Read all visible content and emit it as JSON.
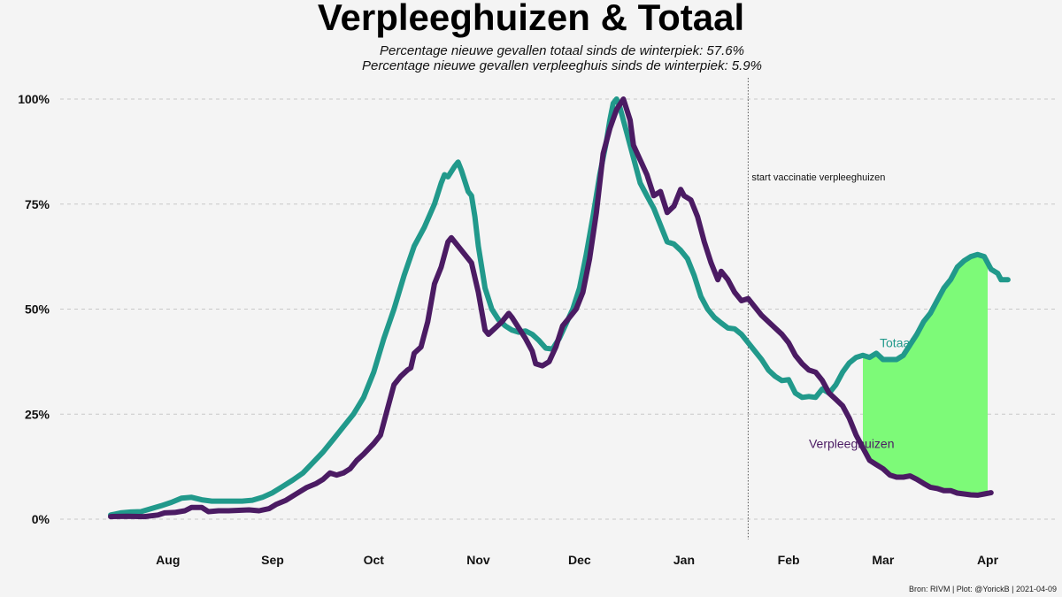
{
  "title": "Verpleeghuizen & Totaal",
  "subtitle1": "Percentage nieuwe gevallen totaal sinds de winterpiek: 57.6%",
  "subtitle2": "Percentage nieuwe gevallen verpleeghuis sinds de winterpiek: 5.9%",
  "caption": "Bron: RIVM | Plot: @YorickB  |  2021-04-09",
  "colors": {
    "totaal": "#21998b",
    "verpleeghuizen": "#4b1b63",
    "fill": "#7dfa78",
    "grid": "#c8c8c8",
    "vline": "#555555"
  },
  "chart_data": {
    "type": "line",
    "x_unit": "days since 2020-07-15",
    "xlim": [
      0,
      268
    ],
    "ylim": [
      0,
      100
    ],
    "y_ticks": [
      {
        "value": 0,
        "label": "0%"
      },
      {
        "value": 25,
        "label": "25%"
      },
      {
        "value": 50,
        "label": "50%"
      },
      {
        "value": 75,
        "label": "75%"
      },
      {
        "value": 100,
        "label": "100%"
      }
    ],
    "x_ticks": [
      {
        "value": 17,
        "label": "Aug"
      },
      {
        "value": 48,
        "label": "Sep"
      },
      {
        "value": 78,
        "label": "Oct"
      },
      {
        "value": 109,
        "label": "Nov"
      },
      {
        "value": 139,
        "label": "Dec"
      },
      {
        "value": 170,
        "label": "Jan"
      },
      {
        "value": 201,
        "label": "Feb"
      },
      {
        "value": 229,
        "label": "Mar"
      },
      {
        "value": 260,
        "label": "Apr"
      }
    ],
    "vertical_line": {
      "x": 189,
      "label": "start vaccinatie verpleeghuizen"
    },
    "fill_between": {
      "from_x": 223,
      "to_x": 260
    },
    "series": [
      {
        "name": "Totaal",
        "label_text": "Totaal",
        "label_pos": {
          "x": 228,
          "y": 42
        },
        "points": [
          [
            0,
            1
          ],
          [
            3,
            1.5
          ],
          [
            6,
            1.7
          ],
          [
            9,
            1.8
          ],
          [
            12,
            2.5
          ],
          [
            15,
            3.2
          ],
          [
            18,
            4
          ],
          [
            21,
            5
          ],
          [
            24,
            5.2
          ],
          [
            27,
            4.6
          ],
          [
            30,
            4.3
          ],
          [
            33,
            4.3
          ],
          [
            36,
            4.3
          ],
          [
            39,
            4.3
          ],
          [
            42,
            4.5
          ],
          [
            45,
            5.2
          ],
          [
            48,
            6.3
          ],
          [
            51,
            7.8
          ],
          [
            54,
            9.3
          ],
          [
            57,
            11
          ],
          [
            60,
            13.5
          ],
          [
            63,
            16
          ],
          [
            66,
            19
          ],
          [
            69,
            22
          ],
          [
            72,
            25
          ],
          [
            75,
            29
          ],
          [
            78,
            35
          ],
          [
            81,
            43
          ],
          [
            84,
            50
          ],
          [
            87,
            58
          ],
          [
            90,
            65
          ],
          [
            93,
            69.5
          ],
          [
            96,
            75
          ],
          [
            98,
            80
          ],
          [
            99,
            82
          ],
          [
            100,
            81.5
          ],
          [
            102,
            84
          ],
          [
            103,
            85
          ],
          [
            104,
            83
          ],
          [
            106,
            78
          ],
          [
            107,
            77
          ],
          [
            108,
            72
          ],
          [
            109,
            65
          ],
          [
            111,
            55
          ],
          [
            113,
            50
          ],
          [
            115,
            47.5
          ],
          [
            117,
            46
          ],
          [
            119,
            45
          ],
          [
            121,
            44.5
          ],
          [
            123,
            44.8
          ],
          [
            125,
            44
          ],
          [
            127,
            42.5
          ],
          [
            129,
            40.7
          ],
          [
            131,
            40.5
          ],
          [
            133,
            43
          ],
          [
            135,
            46.5
          ],
          [
            137,
            50
          ],
          [
            139,
            55
          ],
          [
            141,
            63
          ],
          [
            143,
            72
          ],
          [
            145,
            82
          ],
          [
            147,
            90
          ],
          [
            148,
            95
          ],
          [
            149,
            99
          ],
          [
            150,
            100
          ],
          [
            151,
            98
          ],
          [
            153,
            92
          ],
          [
            155,
            86
          ],
          [
            157,
            80
          ],
          [
            159,
            77
          ],
          [
            161,
            74
          ],
          [
            163,
            70
          ],
          [
            165,
            66
          ],
          [
            167,
            65.5
          ],
          [
            169,
            64
          ],
          [
            171,
            62
          ],
          [
            173,
            58
          ],
          [
            175,
            53
          ],
          [
            177,
            50
          ],
          [
            179,
            48
          ],
          [
            181,
            46.7
          ],
          [
            183,
            45.5
          ],
          [
            185,
            45.3
          ],
          [
            187,
            44
          ],
          [
            189,
            42
          ],
          [
            191,
            40
          ],
          [
            193,
            38
          ],
          [
            195,
            35.5
          ],
          [
            197,
            34
          ],
          [
            199,
            33
          ],
          [
            201,
            33.2
          ],
          [
            203,
            30
          ],
          [
            205,
            29
          ],
          [
            207,
            29.2
          ],
          [
            209,
            29
          ],
          [
            211,
            31
          ],
          [
            213,
            30
          ],
          [
            215,
            32
          ],
          [
            217,
            35
          ],
          [
            219,
            37.2
          ],
          [
            221,
            38.5
          ],
          [
            223,
            39
          ],
          [
            225,
            38.5
          ],
          [
            227,
            39.5
          ],
          [
            229,
            38
          ],
          [
            231,
            38
          ],
          [
            233,
            38
          ],
          [
            235,
            39
          ],
          [
            237,
            41.5
          ],
          [
            239,
            44
          ],
          [
            241,
            47
          ],
          [
            243,
            49
          ],
          [
            245,
            52
          ],
          [
            247,
            55
          ],
          [
            249,
            57
          ],
          [
            251,
            60
          ],
          [
            253,
            61.5
          ],
          [
            255,
            62.5
          ],
          [
            257,
            63
          ],
          [
            259,
            62.5
          ],
          [
            261,
            59.5
          ],
          [
            263,
            58.5
          ],
          [
            264,
            57
          ],
          [
            266,
            57
          ]
        ]
      },
      {
        "name": "Verpleeghuizen",
        "label_text": "Verpleeghuizen",
        "label_pos": {
          "x": 207,
          "y": 18
        },
        "points": [
          [
            0,
            0.6
          ],
          [
            5,
            0.7
          ],
          [
            10,
            0.6
          ],
          [
            14,
            1
          ],
          [
            16,
            1.5
          ],
          [
            19,
            1.6
          ],
          [
            22,
            2
          ],
          [
            24,
            2.8
          ],
          [
            27,
            2.8
          ],
          [
            29,
            1.8
          ],
          [
            32,
            2
          ],
          [
            35,
            2
          ],
          [
            38,
            2.1
          ],
          [
            41,
            2.2
          ],
          [
            44,
            2
          ],
          [
            47,
            2.5
          ],
          [
            49,
            3.5
          ],
          [
            52,
            4.5
          ],
          [
            55,
            6
          ],
          [
            58,
            7.5
          ],
          [
            61,
            8.5
          ],
          [
            63,
            9.5
          ],
          [
            65,
            11
          ],
          [
            67,
            10.5
          ],
          [
            69,
            11
          ],
          [
            71,
            12
          ],
          [
            73,
            14
          ],
          [
            75,
            15.5
          ],
          [
            78,
            18
          ],
          [
            80,
            20
          ],
          [
            82,
            26
          ],
          [
            84,
            32
          ],
          [
            86,
            34
          ],
          [
            88,
            35.5
          ],
          [
            89,
            36
          ],
          [
            90,
            39.5
          ],
          [
            92,
            41
          ],
          [
            94,
            47
          ],
          [
            96,
            56
          ],
          [
            98,
            60
          ],
          [
            100,
            66
          ],
          [
            101,
            67
          ],
          [
            103,
            65
          ],
          [
            105,
            63
          ],
          [
            107,
            61
          ],
          [
            109,
            54
          ],
          [
            111,
            45
          ],
          [
            112,
            44
          ],
          [
            114,
            45.5
          ],
          [
            116,
            47
          ],
          [
            118,
            49
          ],
          [
            119,
            48
          ],
          [
            121,
            45.5
          ],
          [
            123,
            43
          ],
          [
            125,
            40
          ],
          [
            126,
            37
          ],
          [
            128,
            36.5
          ],
          [
            130,
            37.5
          ],
          [
            132,
            41
          ],
          [
            134,
            46
          ],
          [
            136,
            48
          ],
          [
            138,
            50
          ],
          [
            140,
            54
          ],
          [
            142,
            62
          ],
          [
            144,
            73
          ],
          [
            146,
            87
          ],
          [
            148,
            93
          ],
          [
            150,
            97.5
          ],
          [
            152,
            100
          ],
          [
            154,
            95
          ],
          [
            155,
            89
          ],
          [
            157,
            85.5
          ],
          [
            159,
            82
          ],
          [
            161,
            77
          ],
          [
            163,
            78
          ],
          [
            165,
            73
          ],
          [
            167,
            74.5
          ],
          [
            169,
            78.5
          ],
          [
            170,
            77
          ],
          [
            172,
            76
          ],
          [
            174,
            72
          ],
          [
            176,
            66
          ],
          [
            178,
            61
          ],
          [
            180,
            57
          ],
          [
            181,
            59
          ],
          [
            183,
            57
          ],
          [
            185,
            54
          ],
          [
            187,
            52
          ],
          [
            189,
            52.5
          ],
          [
            191,
            50.5
          ],
          [
            193,
            48.5
          ],
          [
            195,
            47
          ],
          [
            197,
            45.5
          ],
          [
            199,
            44
          ],
          [
            201,
            42
          ],
          [
            203,
            39
          ],
          [
            205,
            37
          ],
          [
            207,
            35.5
          ],
          [
            209,
            35
          ],
          [
            211,
            33
          ],
          [
            213,
            30
          ],
          [
            215,
            28.5
          ],
          [
            217,
            27
          ],
          [
            219,
            24
          ],
          [
            221,
            20
          ],
          [
            223,
            17
          ],
          [
            225,
            14
          ],
          [
            227,
            13
          ],
          [
            229,
            12
          ],
          [
            231,
            10.5
          ],
          [
            233,
            10
          ],
          [
            235,
            10
          ],
          [
            237,
            10.3
          ],
          [
            239,
            9.5
          ],
          [
            241,
            8.5
          ],
          [
            243,
            7.6
          ],
          [
            245,
            7.3
          ],
          [
            247,
            6.8
          ],
          [
            249,
            6.8
          ],
          [
            251,
            6.2
          ],
          [
            253,
            6
          ],
          [
            255,
            5.8
          ],
          [
            257,
            5.7
          ],
          [
            259,
            6
          ],
          [
            261,
            6.3
          ]
        ]
      }
    ]
  }
}
